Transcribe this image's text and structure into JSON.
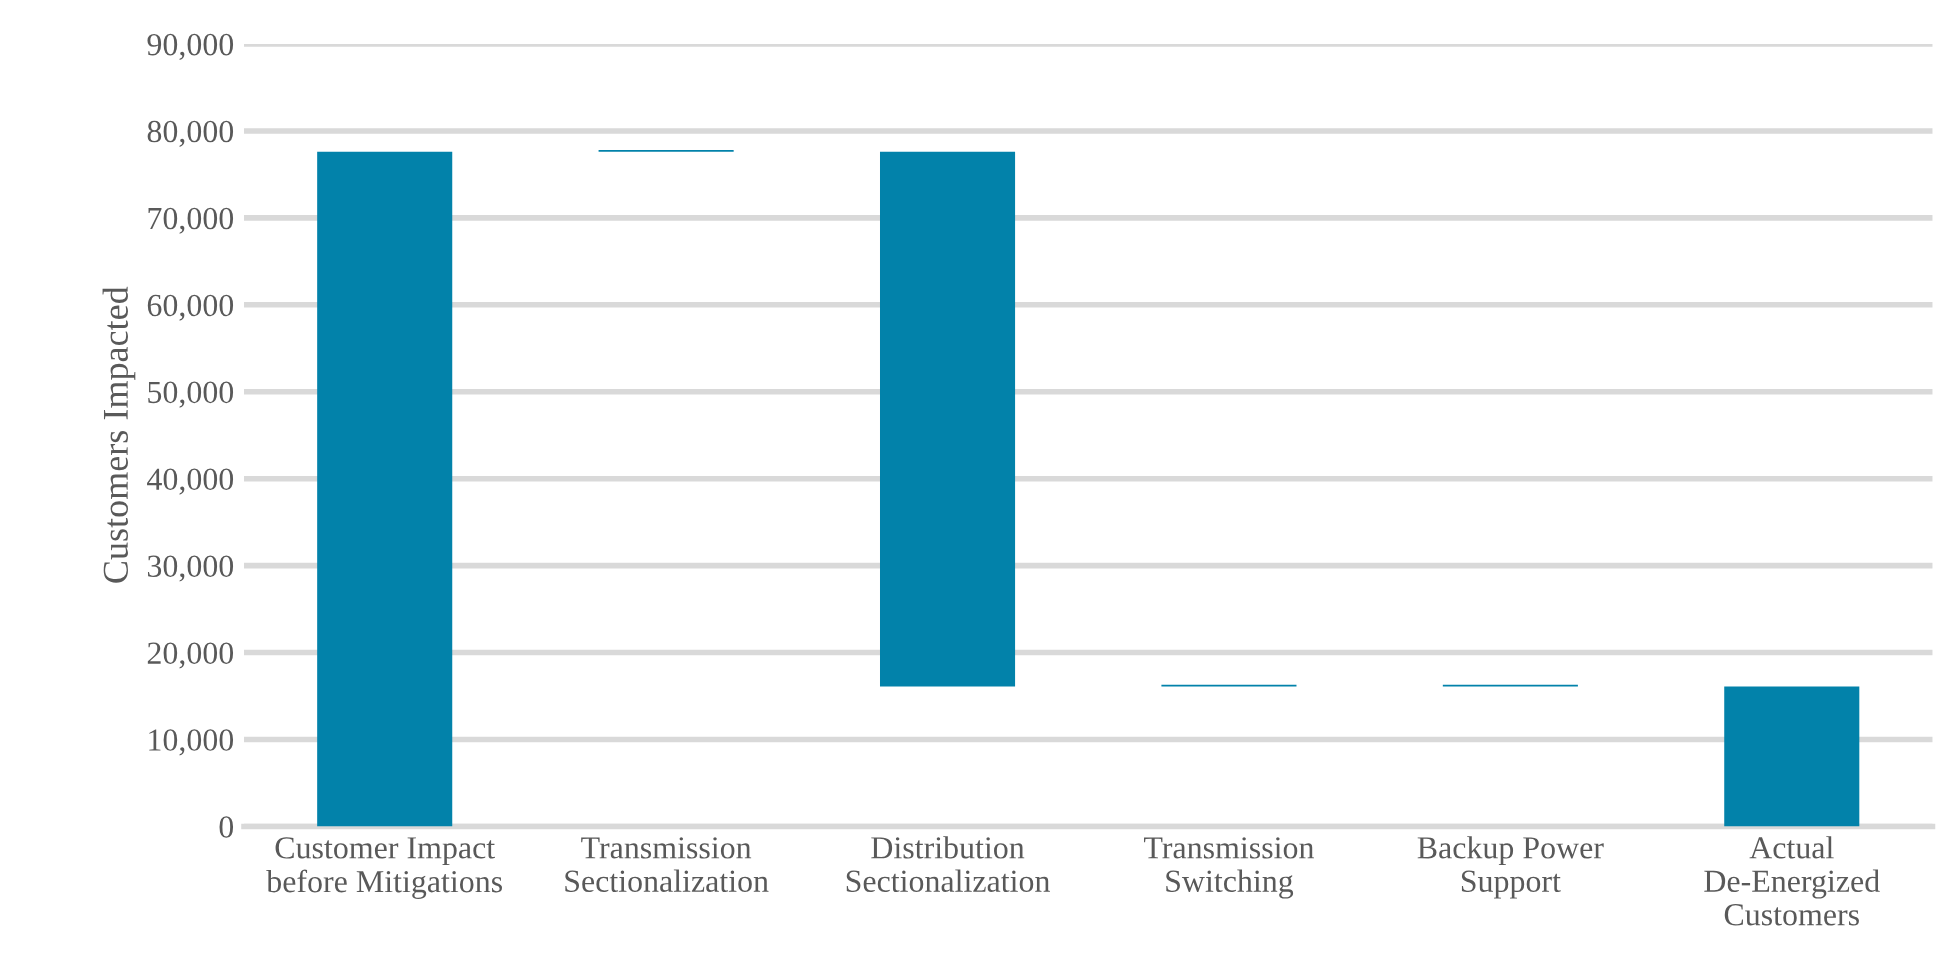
{
  "chart_data": {
    "type": "bar",
    "ylabel": "Customers Impacted",
    "categories": [
      "Customer Impact before Mitigations",
      "Transmission Sectionalization",
      "Distribution Sectionalization",
      "Transmission Switching",
      "Backup Power Support",
      "Actual De-Energized Customers"
    ],
    "values": [
      77600,
      200,
      61500,
      200,
      200,
      16100
    ],
    "base": [
      0,
      77600,
      16100,
      16100,
      16100,
      0
    ],
    "color": "#0282aa",
    "ylim": [
      0,
      90000
    ],
    "yticks": [
      {
        "value": 0,
        "label": "0"
      },
      {
        "value": 10000,
        "label": "10,000"
      },
      {
        "value": 20000,
        "label": "20,000"
      },
      {
        "value": 30000,
        "label": "30,000"
      },
      {
        "value": 40000,
        "label": "40,000"
      },
      {
        "value": 50000,
        "label": "50,000"
      },
      {
        "value": 60000,
        "label": "60,000"
      },
      {
        "value": 70000,
        "label": "70,000"
      },
      {
        "value": 80000,
        "label": "80,000"
      },
      {
        "value": 90000,
        "label": "90,000"
      }
    ],
    "grid": "y"
  }
}
